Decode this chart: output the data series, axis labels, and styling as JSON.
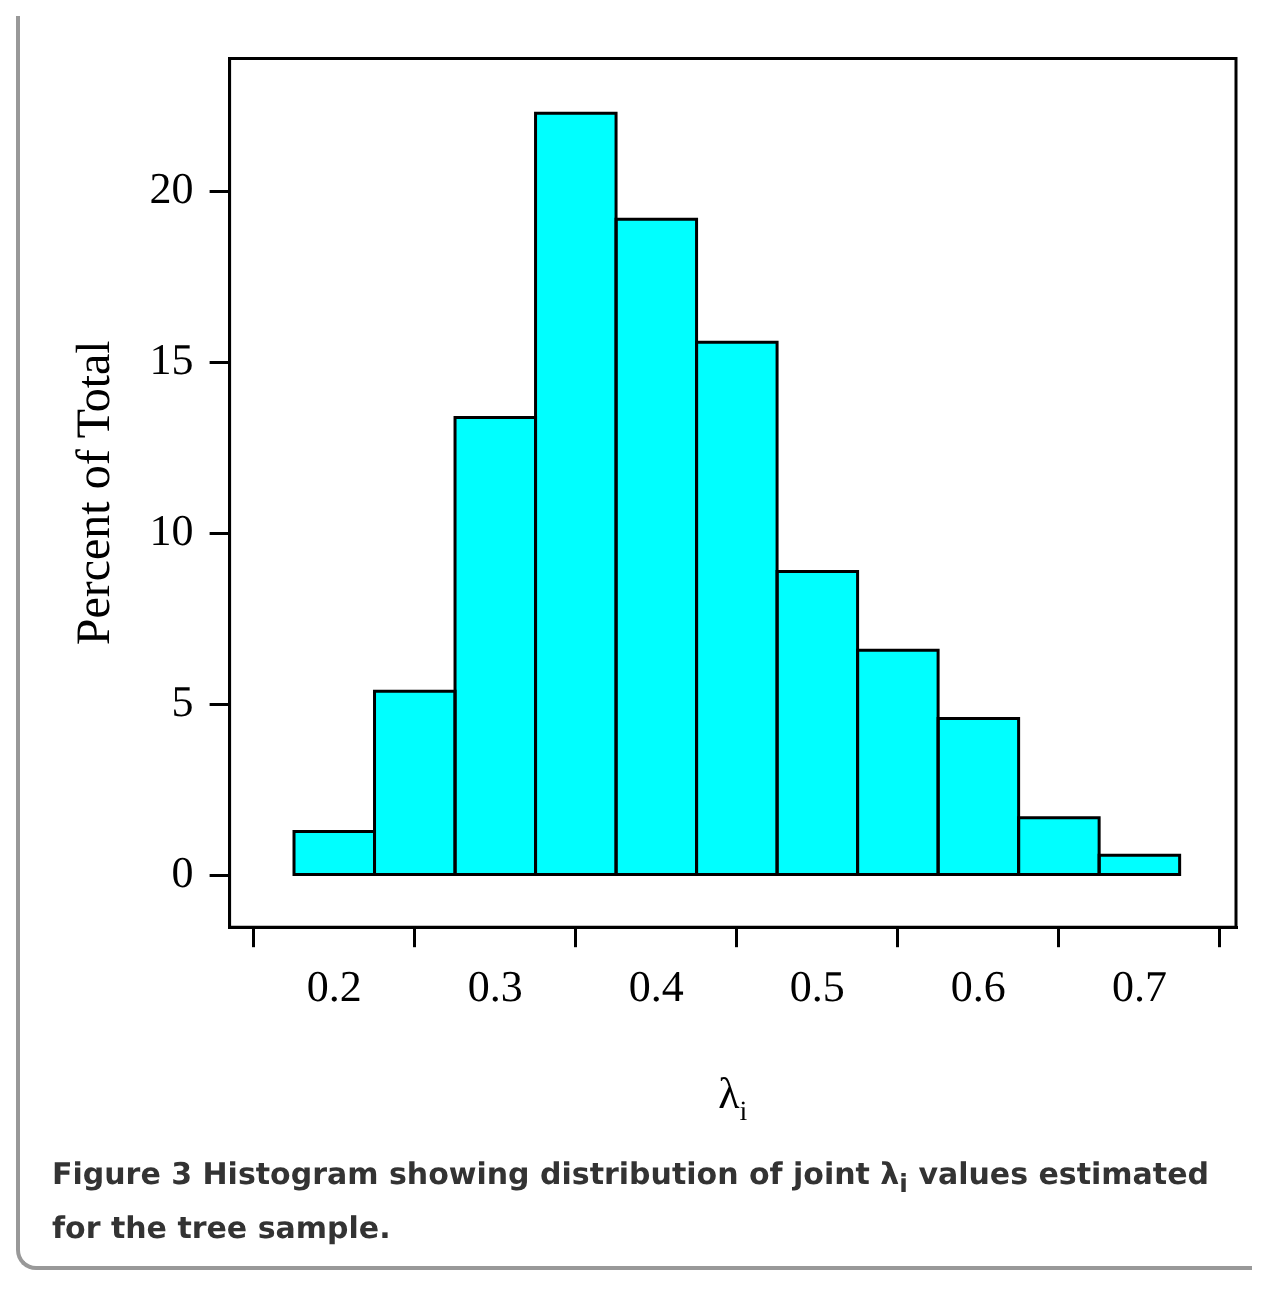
{
  "chart_data": {
    "type": "histogram",
    "xlabel": "λ$_{i}$",
    "ylabel": "Percent of Total",
    "bins": [
      0.175,
      0.225,
      0.275,
      0.325,
      0.375,
      0.425,
      0.475,
      0.525,
      0.575,
      0.625,
      0.675,
      0.725
    ],
    "values": [
      1.3,
      5.4,
      13.4,
      22.3,
      19.2,
      15.6,
      8.9,
      6.6,
      4.6,
      1.7,
      0.6
    ],
    "color": "#00ffff",
    "xlim": [
      0.135,
      0.76
    ],
    "xticks": [
      0.2,
      0.3,
      0.4,
      0.5,
      0.6,
      0.7
    ],
    "ylim": [
      -1.5,
      23.9
    ],
    "yticks": [
      0,
      5,
      10,
      15,
      20
    ],
    "grid": false,
    "legend": false,
    "annotations": [
      "Figure 3 Histogram showing distribution of joint λ$_{i}$ values estimated for the tree sample."
    ]
  }
}
